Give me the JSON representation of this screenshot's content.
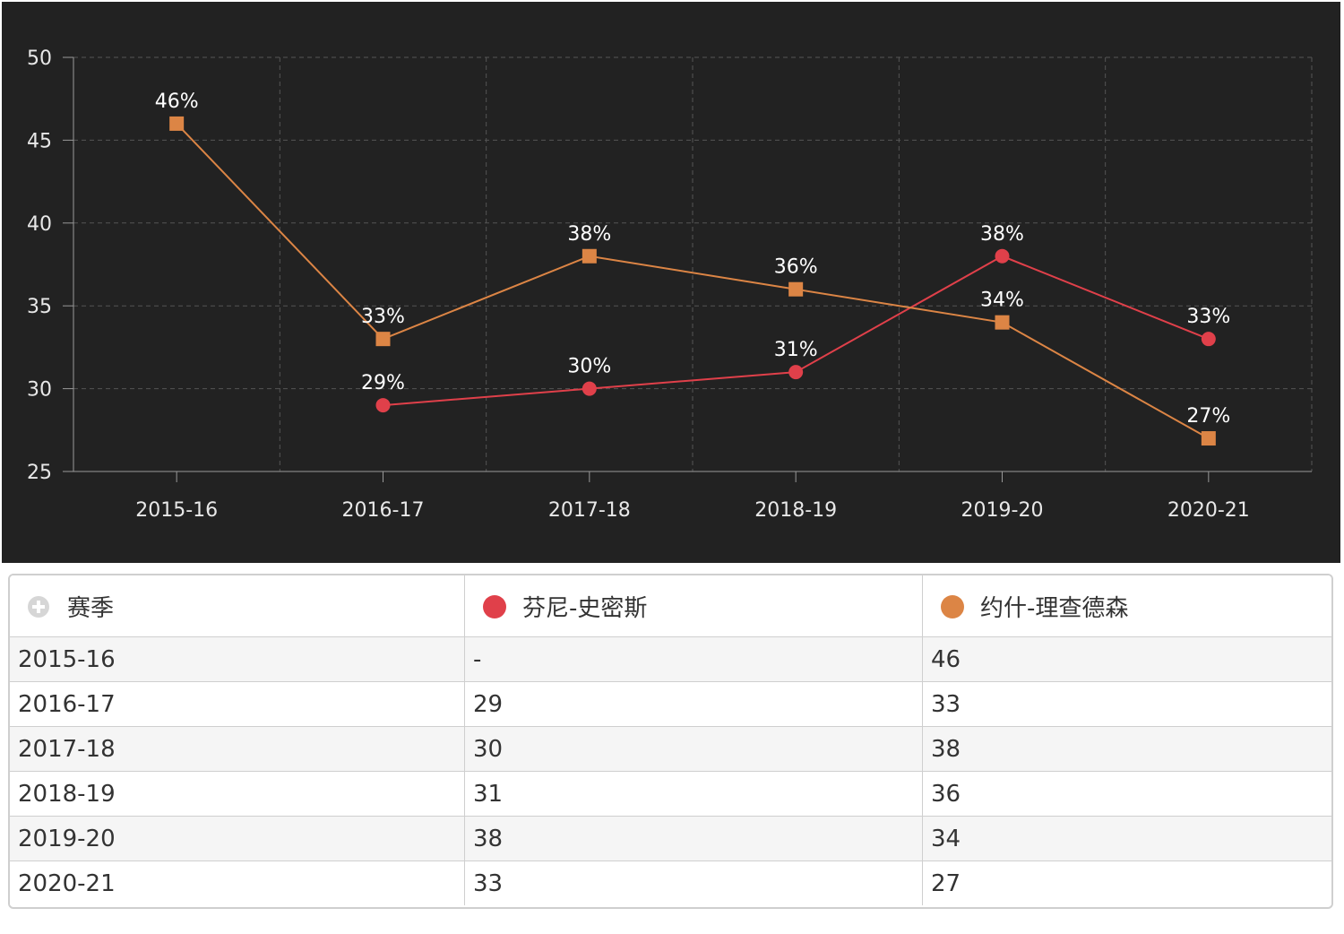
{
  "colors": {
    "background": "#222222",
    "grid": "#555555",
    "axis": "#999999",
    "series_1": "#e0404a",
    "series_2": "#dc8545"
  },
  "chart_data": {
    "type": "line",
    "categories": [
      "2015-16",
      "2016-17",
      "2017-18",
      "2018-19",
      "2019-20",
      "2020-21"
    ],
    "ylim": [
      25,
      50
    ],
    "yticks": [
      25,
      30,
      35,
      40,
      45,
      50
    ],
    "grid": true,
    "series": [
      {
        "name": "芬尼-史密斯",
        "color": "#e0404a",
        "marker": "circle",
        "values": [
          null,
          29,
          30,
          31,
          38,
          33
        ],
        "labels": [
          "",
          "29%",
          "30%",
          "31%",
          "38%",
          "33%"
        ]
      },
      {
        "name": "约什-理查德森",
        "color": "#dc8545",
        "marker": "square",
        "values": [
          46,
          33,
          38,
          36,
          34,
          27
        ],
        "labels": [
          "46%",
          "33%",
          "38%",
          "36%",
          "34%",
          "27%"
        ]
      }
    ]
  },
  "table": {
    "headers": [
      "赛季",
      "芬尼-史密斯",
      "约什-理查德森"
    ],
    "rows": [
      [
        "2015-16",
        "-",
        "46"
      ],
      [
        "2016-17",
        "29",
        "33"
      ],
      [
        "2017-18",
        "30",
        "38"
      ],
      [
        "2018-19",
        "31",
        "36"
      ],
      [
        "2019-20",
        "38",
        "34"
      ],
      [
        "2020-21",
        "33",
        "27"
      ]
    ]
  }
}
